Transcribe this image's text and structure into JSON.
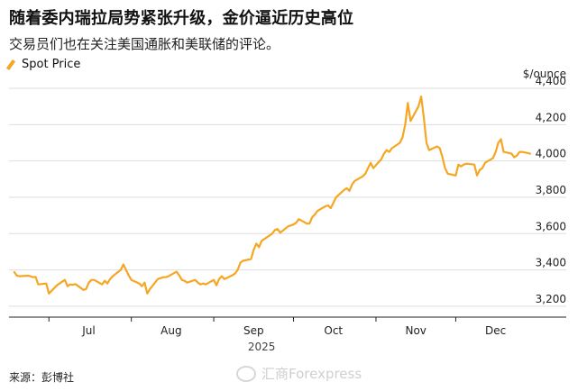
{
  "header": {
    "title": "随着委内瑞拉局势紧张升级，金价逼近历史高位",
    "subtitle": "交易员们也在关注美国通胀和美联储的评论。"
  },
  "footer": {
    "source": "来源：彭博社",
    "watermark": "汇商Forexpress"
  },
  "colors": {
    "line": "#f5a623",
    "grid": "#dedede",
    "axis": "#222222"
  },
  "chart_data": {
    "type": "line",
    "title": "",
    "xlabel": "2025",
    "ylabel": "$/ounce",
    "ylim": [
      3140,
      4420
    ],
    "yticks": [
      3200,
      3400,
      3600,
      3800,
      4000,
      4200,
      4400
    ],
    "ytick_labels": [
      "3,200",
      "3,400",
      "3,600",
      "3,800",
      "4,000",
      "4,200",
      "4,400"
    ],
    "xlim": [
      "2025-06-16",
      "2025-12-29"
    ],
    "xticks": [
      {
        "date": "2025-07-01",
        "label": "Jul"
      },
      {
        "date": "2025-08-01",
        "label": "Aug"
      },
      {
        "date": "2025-09-01",
        "label": "Sep"
      },
      {
        "date": "2025-10-01",
        "label": "Oct"
      },
      {
        "date": "2025-11-01",
        "label": "Nov"
      },
      {
        "date": "2025-12-01",
        "label": "Dec"
      }
    ],
    "legend": "top-left",
    "grid": true,
    "series": [
      {
        "name": "Spot Price",
        "points": [
          [
            "2025-06-18",
            3388
          ],
          [
            "2025-06-19",
            3368
          ],
          [
            "2025-06-20",
            3365
          ],
          [
            "2025-06-23",
            3368
          ],
          [
            "2025-06-24",
            3365
          ],
          [
            "2025-06-25",
            3360
          ],
          [
            "2025-06-26",
            3362
          ],
          [
            "2025-06-27",
            3320
          ],
          [
            "2025-06-30",
            3325
          ],
          [
            "2025-07-01",
            3270
          ],
          [
            "2025-07-02",
            3285
          ],
          [
            "2025-07-03",
            3300
          ],
          [
            "2025-07-04",
            3315
          ],
          [
            "2025-07-07",
            3345
          ],
          [
            "2025-07-08",
            3310
          ],
          [
            "2025-07-09",
            3320
          ],
          [
            "2025-07-10",
            3318
          ],
          [
            "2025-07-11",
            3322
          ],
          [
            "2025-07-14",
            3290
          ],
          [
            "2025-07-15",
            3295
          ],
          [
            "2025-07-16",
            3330
          ],
          [
            "2025-07-17",
            3345
          ],
          [
            "2025-07-18",
            3345
          ],
          [
            "2025-07-21",
            3320
          ],
          [
            "2025-07-22",
            3340
          ],
          [
            "2025-07-23",
            3325
          ],
          [
            "2025-07-24",
            3350
          ],
          [
            "2025-07-25",
            3365
          ],
          [
            "2025-07-28",
            3400
          ],
          [
            "2025-07-29",
            3430
          ],
          [
            "2025-07-30",
            3400
          ],
          [
            "2025-07-31",
            3370
          ],
          [
            "2025-08-01",
            3345
          ],
          [
            "2025-08-04",
            3325
          ],
          [
            "2025-08-05",
            3310
          ],
          [
            "2025-08-06",
            3330
          ],
          [
            "2025-08-07",
            3270
          ],
          [
            "2025-08-08",
            3295
          ],
          [
            "2025-08-11",
            3350
          ],
          [
            "2025-08-12",
            3355
          ],
          [
            "2025-08-13",
            3360
          ],
          [
            "2025-08-14",
            3360
          ],
          [
            "2025-08-15",
            3365
          ],
          [
            "2025-08-18",
            3390
          ],
          [
            "2025-08-19",
            3370
          ],
          [
            "2025-08-20",
            3345
          ],
          [
            "2025-08-21",
            3340
          ],
          [
            "2025-08-22",
            3330
          ],
          [
            "2025-08-25",
            3345
          ],
          [
            "2025-08-26",
            3330
          ],
          [
            "2025-08-27",
            3320
          ],
          [
            "2025-08-28",
            3325
          ],
          [
            "2025-08-29",
            3320
          ],
          [
            "2025-09-01",
            3345
          ],
          [
            "2025-09-02",
            3315
          ],
          [
            "2025-09-03",
            3350
          ],
          [
            "2025-09-04",
            3365
          ],
          [
            "2025-09-05",
            3350
          ],
          [
            "2025-09-08",
            3370
          ],
          [
            "2025-09-09",
            3380
          ],
          [
            "2025-09-10",
            3400
          ],
          [
            "2025-09-11",
            3440
          ],
          [
            "2025-09-12",
            3450
          ],
          [
            "2025-09-15",
            3460
          ],
          [
            "2025-09-16",
            3510
          ],
          [
            "2025-09-17",
            3545
          ],
          [
            "2025-09-18",
            3525
          ],
          [
            "2025-09-19",
            3560
          ],
          [
            "2025-09-22",
            3590
          ],
          [
            "2025-09-23",
            3600
          ],
          [
            "2025-09-24",
            3620
          ],
          [
            "2025-09-25",
            3625
          ],
          [
            "2025-09-26",
            3605
          ],
          [
            "2025-09-29",
            3640
          ],
          [
            "2025-09-30",
            3645
          ],
          [
            "2025-10-01",
            3650
          ],
          [
            "2025-10-02",
            3660
          ],
          [
            "2025-10-03",
            3680
          ],
          [
            "2025-10-06",
            3655
          ],
          [
            "2025-10-07",
            3655
          ],
          [
            "2025-10-08",
            3690
          ],
          [
            "2025-10-09",
            3705
          ],
          [
            "2025-10-10",
            3725
          ],
          [
            "2025-10-13",
            3750
          ],
          [
            "2025-10-14",
            3755
          ],
          [
            "2025-10-15",
            3740
          ],
          [
            "2025-10-16",
            3770
          ],
          [
            "2025-10-17",
            3800
          ],
          [
            "2025-10-20",
            3840
          ],
          [
            "2025-10-21",
            3850
          ],
          [
            "2025-10-22",
            3835
          ],
          [
            "2025-10-23",
            3870
          ],
          [
            "2025-10-24",
            3890
          ],
          [
            "2025-10-27",
            3915
          ],
          [
            "2025-10-28",
            3930
          ],
          [
            "2025-10-29",
            3960
          ],
          [
            "2025-10-30",
            3990
          ],
          [
            "2025-10-31",
            3960
          ],
          [
            "2025-11-03",
            4010
          ],
          [
            "2025-11-04",
            4040
          ],
          [
            "2025-11-05",
            4060
          ],
          [
            "2025-11-06",
            4050
          ],
          [
            "2025-11-07",
            4070
          ],
          [
            "2025-11-10",
            4100
          ],
          [
            "2025-11-11",
            4130
          ],
          [
            "2025-11-12",
            4200
          ],
          [
            "2025-11-13",
            4320
          ],
          [
            "2025-11-14",
            4220
          ],
          [
            "2025-11-17",
            4300
          ],
          [
            "2025-11-18",
            4355
          ],
          [
            "2025-11-19",
            4240
          ],
          [
            "2025-11-20",
            4100
          ],
          [
            "2025-11-21",
            4060
          ],
          [
            "2025-11-24",
            4080
          ],
          [
            "2025-11-25",
            4070
          ],
          [
            "2025-11-26",
            4020
          ],
          [
            "2025-11-27",
            3960
          ],
          [
            "2025-11-28",
            3930
          ],
          [
            "2025-12-01",
            3920
          ],
          [
            "2025-12-02",
            3980
          ],
          [
            "2025-12-03",
            3970
          ],
          [
            "2025-12-04",
            3980
          ],
          [
            "2025-12-05",
            3985
          ],
          [
            "2025-12-08",
            3980
          ],
          [
            "2025-12-09",
            3920
          ],
          [
            "2025-12-10",
            3950
          ],
          [
            "2025-12-11",
            3960
          ],
          [
            "2025-12-12",
            3990
          ],
          [
            "2025-12-15",
            4015
          ],
          [
            "2025-12-16",
            4050
          ],
          [
            "2025-12-17",
            4100
          ],
          [
            "2025-12-18",
            4120
          ],
          [
            "2025-12-19",
            4050
          ],
          [
            "2025-12-22",
            4040
          ],
          [
            "2025-12-23",
            4020
          ],
          [
            "2025-12-24",
            4030
          ],
          [
            "2025-12-25",
            4050
          ],
          [
            "2025-12-26",
            4050
          ],
          [
            "2025-12-29",
            4040
          ]
        ]
      }
    ]
  }
}
